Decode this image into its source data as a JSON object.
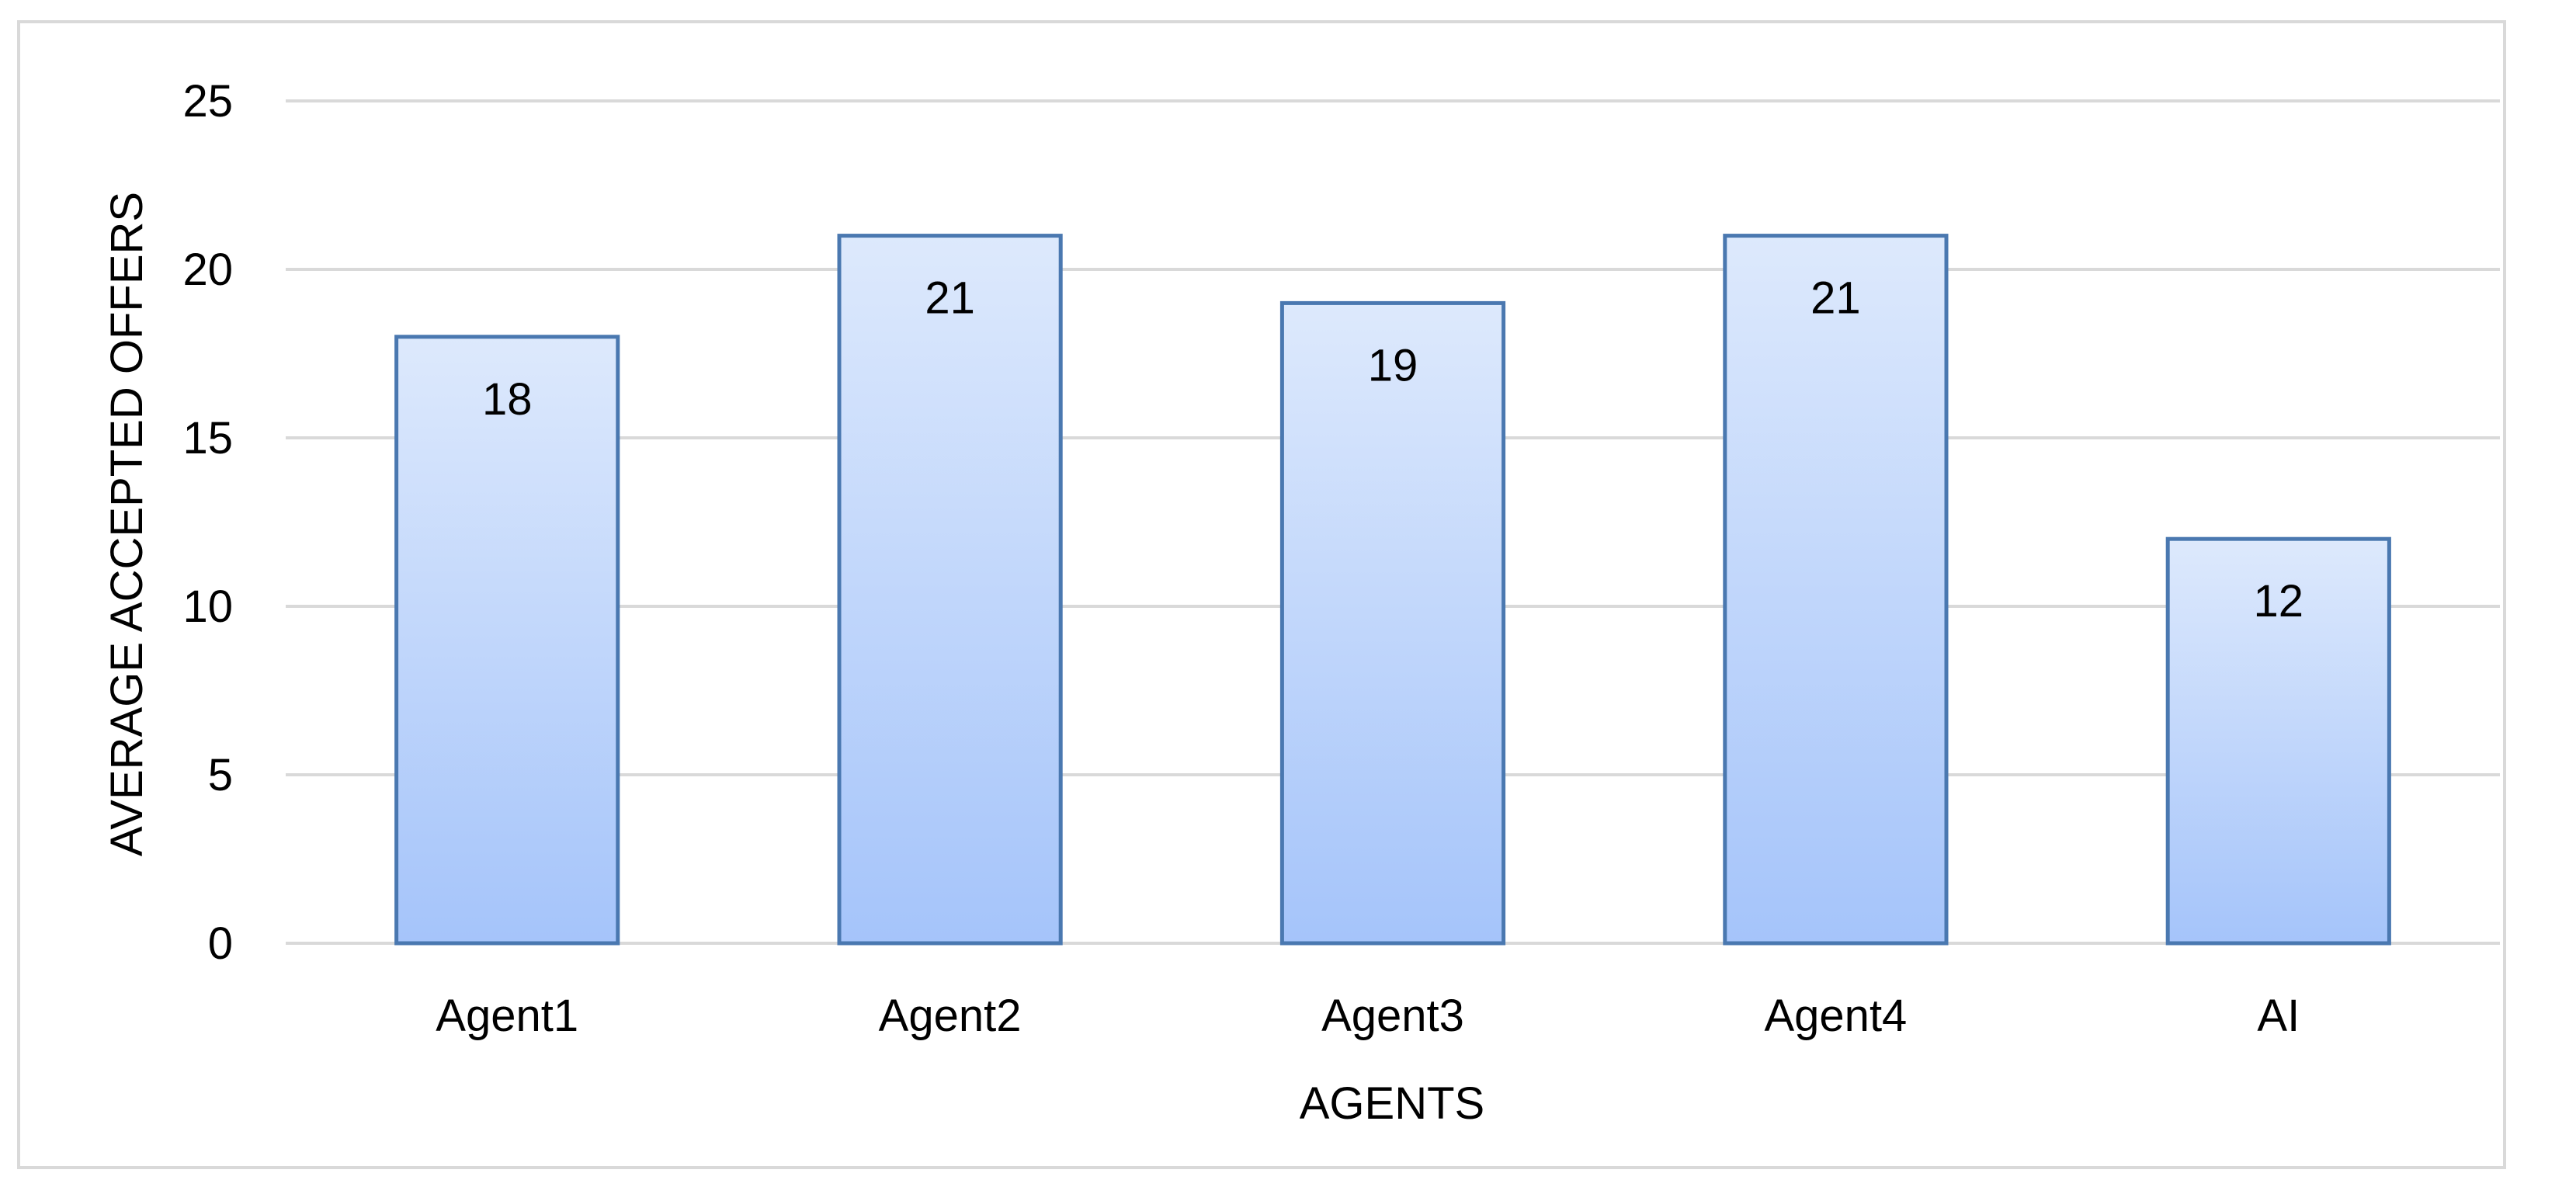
{
  "chart_data": {
    "type": "bar",
    "categories": [
      "Agent1",
      "Agent2",
      "Agent3",
      "Agent4",
      "AI"
    ],
    "values": [
      18,
      21,
      19,
      21,
      12
    ],
    "data_labels": [
      "18",
      "21",
      "19",
      "21",
      "12"
    ],
    "title": "",
    "xlabel": "AGENTS",
    "ylabel": "AVERAGE ACCEPTED OFFERS",
    "ylim": [
      0,
      25
    ],
    "yticks": [
      0,
      5,
      10,
      15,
      20,
      25
    ],
    "ytick_labels": [
      "0",
      "5",
      "10",
      "15",
      "20",
      "25"
    ],
    "grid": true,
    "legend": "none",
    "colors": {
      "bar_top": "#dde9fc",
      "bar_bottom": "#a5c4fa",
      "bar_border": "#4a78b0",
      "grid": "#d9d9d9"
    }
  }
}
